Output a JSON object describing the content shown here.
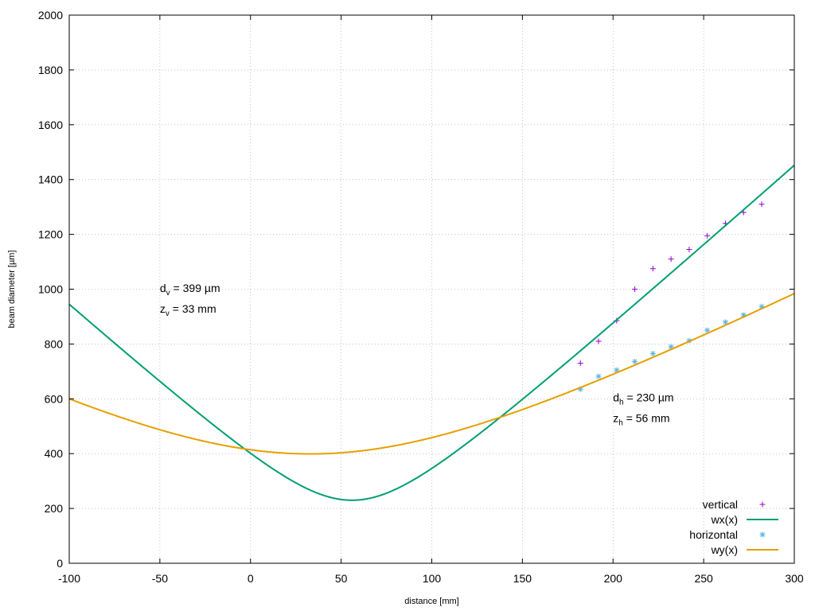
{
  "chart_data": {
    "type": "line",
    "title": "",
    "xlabel": "distance [mm]",
    "ylabel": "beam diameter [µm]",
    "xlim": [
      -100,
      300
    ],
    "ylim": [
      0,
      2000
    ],
    "xticks": [
      -100,
      -50,
      0,
      50,
      100,
      150,
      200,
      250,
      300
    ],
    "yticks": [
      0,
      200,
      400,
      600,
      800,
      1000,
      1200,
      1400,
      1600,
      1800,
      2000
    ],
    "grid": true,
    "legend_position": "bottom-right",
    "series": [
      {
        "name": "vertical",
        "kind": "scatter",
        "marker": "+",
        "color": "#9400d3",
        "x": [
          182,
          192,
          202,
          212,
          222,
          232,
          242,
          252,
          262,
          272,
          282
        ],
        "y": [
          730,
          810,
          885,
          1000,
          1075,
          1110,
          1145,
          1195,
          1240,
          1280,
          1310
        ]
      },
      {
        "name": "wx(x)",
        "kind": "line",
        "color": "#009e73",
        "d0": 230,
        "z0": 56,
        "x": [
          -100,
          -75,
          -50,
          -25,
          0,
          25,
          40,
          56,
          70,
          90,
          110,
          137,
          150,
          175,
          200,
          225,
          250,
          275,
          300
        ],
        "y": [
          945,
          835,
          722,
          608,
          490,
          372,
          305,
          230,
          280,
          372,
          465,
          535,
          615,
          775,
          900,
          1065,
          1190,
          1340,
          1460
        ]
      },
      {
        "name": "horizontal",
        "kind": "scatter",
        "marker": "*",
        "color": "#56b4e9",
        "x": [
          182,
          192,
          202,
          212,
          222,
          232,
          242,
          252,
          262,
          272,
          282
        ],
        "y": [
          635,
          682,
          705,
          736,
          765,
          790,
          812,
          850,
          880,
          906,
          937
        ]
      },
      {
        "name": "wy(x)",
        "kind": "line",
        "color": "#e69f00",
        "d0": 399,
        "z0": 33,
        "x": [
          -100,
          -75,
          -50,
          -25,
          0,
          33,
          50,
          75,
          100,
          125,
          150,
          175,
          200,
          225,
          250,
          275,
          300
        ],
        "y": [
          600,
          540,
          487,
          445,
          415,
          399,
          402,
          420,
          450,
          490,
          540,
          600,
          667,
          740,
          820,
          905,
          990
        ]
      }
    ],
    "annotations": [
      {
        "main": "d",
        "sub": "v",
        "rest": " = 399 µm",
        "x": -50,
        "y": 990
      },
      {
        "main": "z",
        "sub": "v",
        "rest": " = 33 mm",
        "x": -50,
        "y": 915
      },
      {
        "main": "d",
        "sub": "h",
        "rest": " = 230 µm",
        "x": 200,
        "y": 590
      },
      {
        "main": "z",
        "sub": "h",
        "rest": " = 56 mm",
        "x": 200,
        "y": 515
      }
    ]
  }
}
